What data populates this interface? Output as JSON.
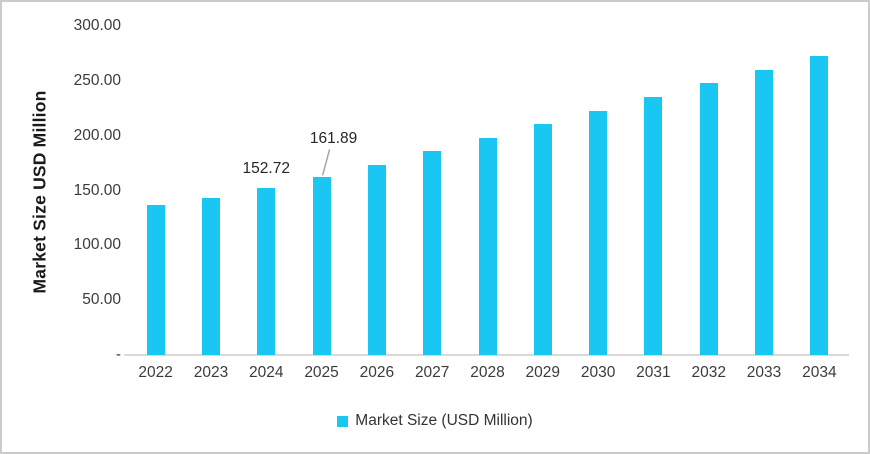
{
  "colors": {
    "bar": "#1ac6f2",
    "axis_line": "#d9d9d9",
    "leader_line": "#a6a6a6",
    "frame_border": "#cbcbcb"
  },
  "chart_data": {
    "type": "bar",
    "title": "",
    "xlabel": "",
    "ylabel": "Market Size USD Million",
    "ylim": [
      0,
      300
    ],
    "grid": false,
    "legend_position": "bottom",
    "legend": [
      "Market Size (USD Million)"
    ],
    "bar_color": "#1ac6f2",
    "y_ticks": [
      {
        "value": 300,
        "label": "300.00"
      },
      {
        "value": 250,
        "label": "250.00"
      },
      {
        "value": 200,
        "label": "200.00"
      },
      {
        "value": 150,
        "label": "150.00"
      },
      {
        "value": 100,
        "label": "100.00"
      },
      {
        "value": 50,
        "label": "50.00"
      },
      {
        "value": 0,
        "label": "-"
      }
    ],
    "categories": [
      "2022",
      "2023",
      "2024",
      "2025",
      "2026",
      "2027",
      "2028",
      "2029",
      "2030",
      "2031",
      "2032",
      "2033",
      "2034"
    ],
    "series": [
      {
        "name": "Market Size (USD Million)",
        "values": [
          136.5,
          143.0,
          152.72,
          161.89,
          173.5,
          186.0,
          198.0,
          210.5,
          222.5,
          235.5,
          248.0,
          259.5,
          273.0
        ]
      }
    ],
    "annotations": [
      {
        "category": "2024",
        "text": "152.72",
        "style": "above"
      },
      {
        "category": "2025",
        "text": "161.89",
        "style": "callout"
      }
    ]
  }
}
